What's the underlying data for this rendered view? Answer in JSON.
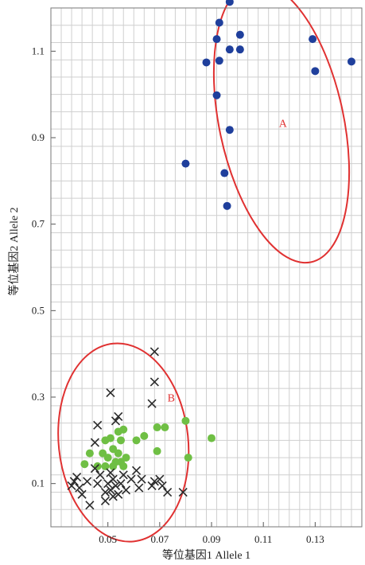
{
  "chart_data": {
    "type": "scatter",
    "title": "",
    "xlabel": "等位基因1 Allele 1",
    "ylabel": "等位基因2 Allele 2",
    "xlim": [
      0.028,
      0.148
    ],
    "ylim": [
      0.0,
      1.2
    ],
    "x_ticks": [
      0.05,
      0.07,
      0.09,
      0.11,
      0.13
    ],
    "y_ticks": [
      0.1,
      0.3,
      0.5,
      0.7,
      0.9,
      1.1
    ],
    "x_tick_labels": [
      "0.05",
      "0.07",
      "0.09",
      "0.11",
      "0.13"
    ],
    "y_tick_labels": [
      "0.1",
      "0.3",
      "0.5",
      "0.7",
      "0.9",
      "1.1"
    ],
    "grid": true,
    "annotations": [
      "A",
      "B"
    ],
    "colors": {
      "blue": "#1f3f9c",
      "green": "#6fbf44",
      "black": "#2a2a2a",
      "ellipse": "#e03131",
      "grid": "#cfcfcf"
    },
    "clusters": [
      {
        "label": "A",
        "center": [
          0.117,
          0.935
        ],
        "x_radius": 0.024,
        "y_radius": 0.33,
        "points": [
          [
            0.097,
            1.214
          ],
          [
            0.093,
            1.166
          ],
          [
            0.101,
            1.138
          ],
          [
            0.092,
            1.128
          ],
          [
            0.097,
            1.104
          ],
          [
            0.101,
            1.104
          ],
          [
            0.088,
            1.074
          ],
          [
            0.093,
            1.078
          ],
          [
            0.129,
            1.128
          ],
          [
            0.13,
            1.054
          ],
          [
            0.144,
            1.076
          ],
          [
            0.092,
            0.998
          ],
          [
            0.097,
            0.918
          ],
          [
            0.08,
            0.84
          ],
          [
            0.095,
            0.818
          ],
          [
            0.096,
            0.742
          ]
        ]
      },
      {
        "label": "B",
        "center": [
          0.056,
          0.195
        ],
        "x_radius": 0.025,
        "y_radius": 0.23,
        "green": [
          [
            0.054,
            0.22
          ],
          [
            0.055,
            0.2
          ],
          [
            0.056,
            0.225
          ],
          [
            0.051,
            0.205
          ],
          [
            0.049,
            0.2
          ],
          [
            0.052,
            0.18
          ],
          [
            0.054,
            0.17
          ],
          [
            0.048,
            0.17
          ],
          [
            0.05,
            0.16
          ],
          [
            0.053,
            0.15
          ],
          [
            0.055,
            0.15
          ],
          [
            0.057,
            0.16
          ],
          [
            0.056,
            0.14
          ],
          [
            0.052,
            0.14
          ],
          [
            0.049,
            0.14
          ],
          [
            0.046,
            0.14
          ],
          [
            0.043,
            0.17
          ],
          [
            0.041,
            0.145
          ],
          [
            0.061,
            0.2
          ],
          [
            0.064,
            0.21
          ],
          [
            0.069,
            0.23
          ],
          [
            0.072,
            0.23
          ],
          [
            0.08,
            0.245
          ],
          [
            0.09,
            0.205
          ],
          [
            0.069,
            0.175
          ],
          [
            0.081,
            0.16
          ]
        ],
        "black": [
          [
            0.068,
            0.405
          ],
          [
            0.068,
            0.335
          ],
          [
            0.051,
            0.31
          ],
          [
            0.067,
            0.285
          ],
          [
            0.054,
            0.255
          ],
          [
            0.053,
            0.245
          ],
          [
            0.046,
            0.235
          ],
          [
            0.045,
            0.195
          ],
          [
            0.038,
            0.115
          ],
          [
            0.037,
            0.105
          ],
          [
            0.039,
            0.09
          ],
          [
            0.04,
            0.075
          ],
          [
            0.042,
            0.105
          ],
          [
            0.043,
            0.05
          ],
          [
            0.045,
            0.135
          ],
          [
            0.046,
            0.1
          ],
          [
            0.047,
            0.12
          ],
          [
            0.049,
            0.06
          ],
          [
            0.049,
            0.08
          ],
          [
            0.05,
            0.1
          ],
          [
            0.051,
            0.125
          ],
          [
            0.051,
            0.085
          ],
          [
            0.052,
            0.07
          ],
          [
            0.052,
            0.11
          ],
          [
            0.053,
            0.095
          ],
          [
            0.054,
            0.075
          ],
          [
            0.055,
            0.1
          ],
          [
            0.056,
            0.12
          ],
          [
            0.057,
            0.085
          ],
          [
            0.059,
            0.11
          ],
          [
            0.061,
            0.13
          ],
          [
            0.062,
            0.09
          ],
          [
            0.063,
            0.11
          ],
          [
            0.067,
            0.095
          ],
          [
            0.068,
            0.105
          ],
          [
            0.07,
            0.11
          ],
          [
            0.071,
            0.095
          ],
          [
            0.073,
            0.08
          ],
          [
            0.079,
            0.08
          ],
          [
            0.036,
            0.095
          ]
        ]
      }
    ]
  }
}
